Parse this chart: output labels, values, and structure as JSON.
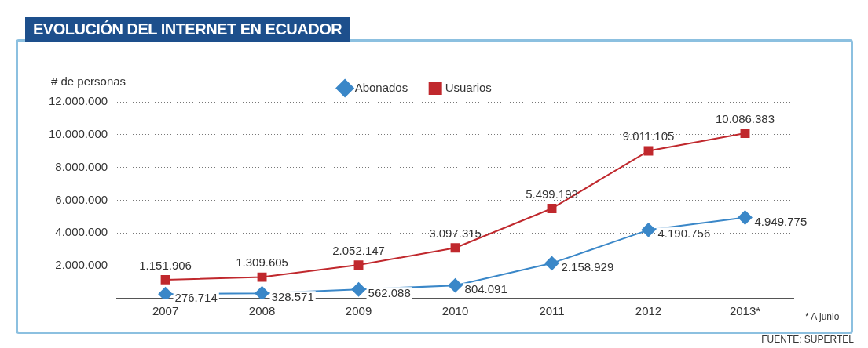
{
  "chart_data": {
    "type": "line",
    "title": "EVOLUCIÓN DEL INTERNET EN ECUADOR",
    "ylabel": "# de personas",
    "categories": [
      "2007",
      "2008",
      "2009",
      "2010",
      "2011",
      "2012",
      "2013*"
    ],
    "series": [
      {
        "name": "Abonados",
        "color": "#3a87c8",
        "marker": "diamond",
        "values": [
          276714,
          328571,
          562088,
          804091,
          2158929,
          4190756,
          4949775
        ],
        "value_labels": [
          "276.714",
          "328.571",
          "562.088",
          "804.091",
          "2.158.929",
          "4.190.756",
          "4.949.775"
        ]
      },
      {
        "name": "Usuarios",
        "color": "#c0282d",
        "marker": "square",
        "values": [
          1151906,
          1309605,
          2052147,
          3097315,
          5499193,
          9011105,
          10086383
        ],
        "value_labels": [
          "1.151.906",
          "1.309.605",
          "2.052.147",
          "3.097.315",
          "5.499.193",
          "9.011.105",
          "10.086.383"
        ]
      }
    ],
    "ylim": [
      0,
      12000000
    ],
    "yticks": [
      {
        "value": 2000000,
        "label": "2.000.000"
      },
      {
        "value": 4000000,
        "label": "4.000.000"
      },
      {
        "value": 6000000,
        "label": "6.000.000"
      },
      {
        "value": 8000000,
        "label": "8.000.000"
      },
      {
        "value": 10000000,
        "label": "10.000.000"
      },
      {
        "value": 12000000,
        "label": "12.000.000"
      }
    ],
    "grid": "y",
    "legend": "top",
    "line_style": "solid",
    "annotations": [
      "* A junio",
      "FUENTE: SUPERTEL"
    ]
  }
}
